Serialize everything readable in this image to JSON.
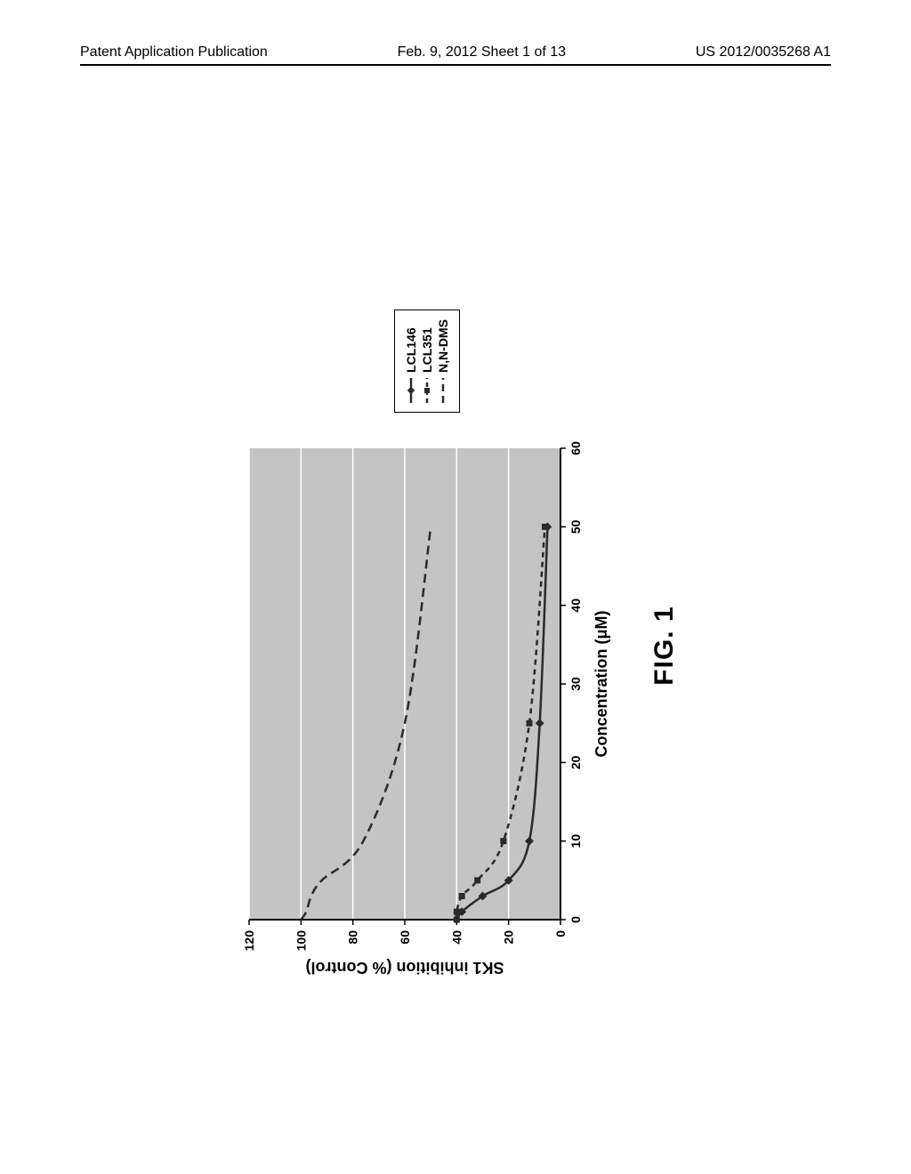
{
  "header": {
    "left": "Patent Application Publication",
    "mid": "Feb. 9, 2012  Sheet 1 of 13",
    "right": "US 2012/0035268 A1"
  },
  "figure": {
    "caption": "FIG. 1",
    "chart": {
      "type": "line",
      "xlabel": "Concentration (μM)",
      "ylabel": "SK1 inhibition (% Control)",
      "xlim": [
        0,
        60
      ],
      "ylim": [
        0,
        120
      ],
      "xtick_step": 10,
      "ytick_step": 20,
      "xticks": [
        0,
        10,
        20,
        30,
        40,
        50,
        60
      ],
      "yticks": [
        0,
        20,
        40,
        60,
        80,
        100,
        120
      ],
      "plot_bg": "#c4c4c4",
      "grid_color": "#ffffff",
      "axis_color": "#000000",
      "label_fontsize": 18,
      "tick_fontsize": 14,
      "series": [
        {
          "name": "LCL146",
          "color": "#2a2a2a",
          "dash": "none",
          "marker": "diamond",
          "marker_size": 7,
          "line_width": 2.5,
          "x": [
            0,
            1,
            3,
            5,
            10,
            25,
            50
          ],
          "y": [
            40,
            38,
            30,
            20,
            12,
            8,
            5
          ]
        },
        {
          "name": "LCL351",
          "color": "#2a2a2a",
          "dash": "6,5",
          "marker": "square",
          "marker_size": 7,
          "line_width": 2.5,
          "x": [
            0,
            1,
            3,
            5,
            10,
            25,
            50
          ],
          "y": [
            40,
            40,
            38,
            32,
            22,
            12,
            6
          ]
        },
        {
          "name": "N,N-DMS",
          "color": "#2a2a2a",
          "dash": "10,6",
          "marker": "none",
          "marker_size": 0,
          "line_width": 2.5,
          "x": [
            0,
            1,
            3,
            5,
            10,
            25,
            50
          ],
          "y": [
            100,
            98,
            96,
            92,
            76,
            60,
            50
          ]
        }
      ]
    }
  }
}
